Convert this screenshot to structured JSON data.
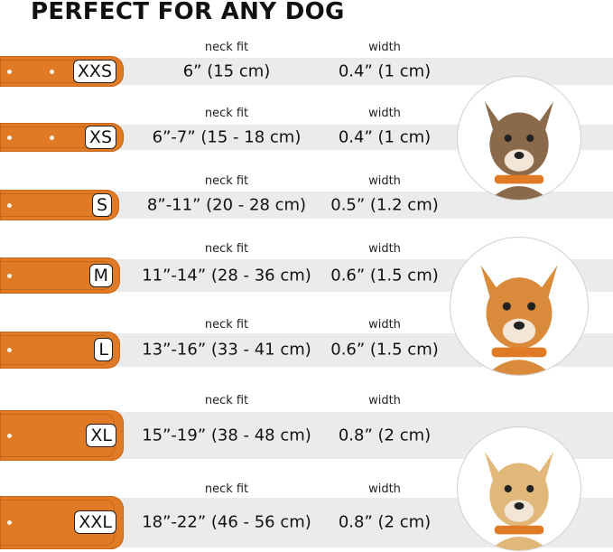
{
  "title": "PERFECT FOR ANY DOG",
  "neck_fit_label": "neck fit",
  "width_label": "width",
  "collar_color": "#e07a24",
  "sizes": [
    {
      "size": "XXS",
      "neck_fit": "6” (15 cm)",
      "width": "0.4” (1 cm)"
    },
    {
      "size": "XS",
      "neck_fit": "6”-7” (15 - 18 cm)",
      "width": "0.4” (1 cm)"
    },
    {
      "size": "S",
      "neck_fit": "8”-11” (20 - 28 cm)",
      "width": "0.5” (1.2 cm)"
    },
    {
      "size": "M",
      "neck_fit": "11”-14” (28 - 36 cm)",
      "width": "0.6” (1.5 cm)"
    },
    {
      "size": "L",
      "neck_fit": "13”-16” (33 - 41 cm)",
      "width": "0.6” (1.5 cm)"
    },
    {
      "size": "XL",
      "neck_fit": "15”-19” (38 - 48 cm)",
      "width": "0.8” (2 cm)"
    },
    {
      "size": "XXL",
      "neck_fit": "18”-22” (46 - 56 cm)",
      "width": "0.8” (2 cm)"
    }
  ],
  "dog_photos": [
    "terrier",
    "corgi",
    "labrador"
  ]
}
